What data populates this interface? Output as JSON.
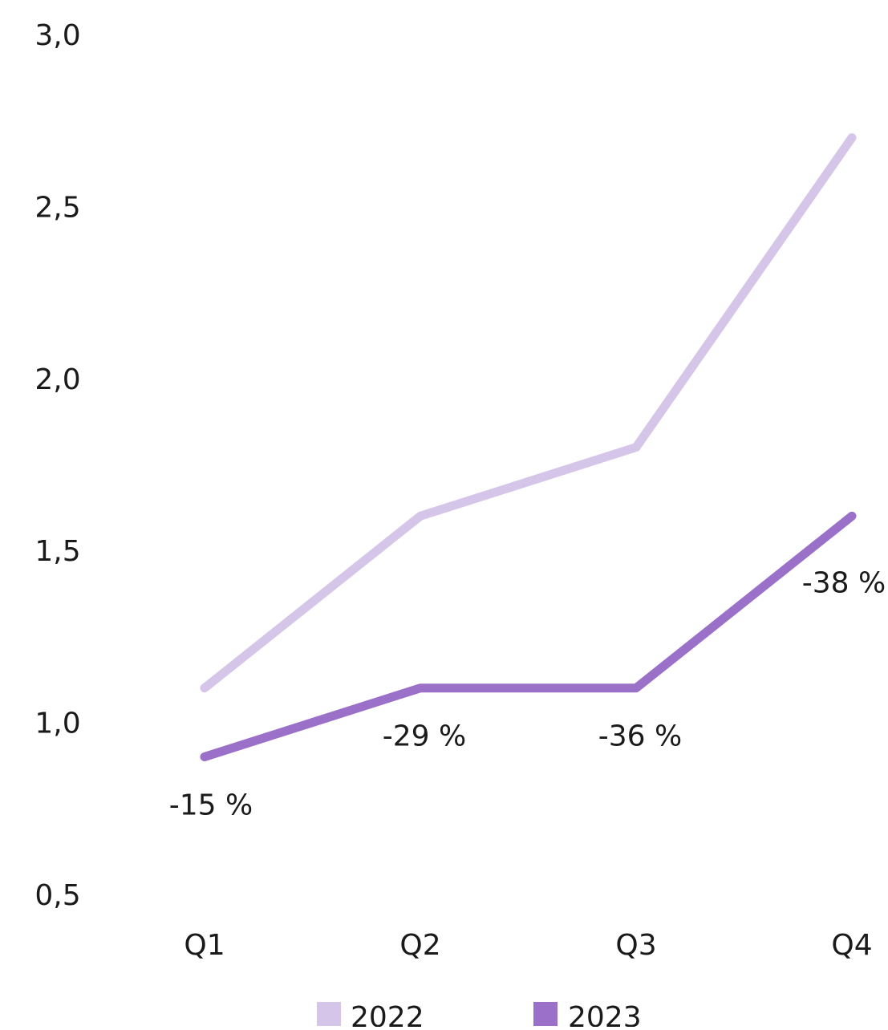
{
  "chart_data": {
    "type": "line",
    "categories": [
      "Q1",
      "Q2",
      "Q3",
      "Q4"
    ],
    "y_ticks": [
      "0,5",
      "1,0",
      "1,5",
      "2,0",
      "2,5",
      "3,0"
    ],
    "y_tick_values": [
      0.5,
      1.0,
      1.5,
      2.0,
      2.5,
      3.0
    ],
    "ylim": [
      0.5,
      3.0
    ],
    "grid": false,
    "legend_position": "bottom",
    "series": [
      {
        "name": "2022",
        "values": [
          1.1,
          1.6,
          1.8,
          2.7
        ],
        "color": "#d5c6e9"
      },
      {
        "name": "2023",
        "values": [
          0.9,
          1.1,
          1.1,
          1.6
        ],
        "color": "#9a70c9",
        "data_labels": [
          "-15 %",
          "-29 %",
          "-36 %",
          "-38 %"
        ]
      }
    ]
  }
}
